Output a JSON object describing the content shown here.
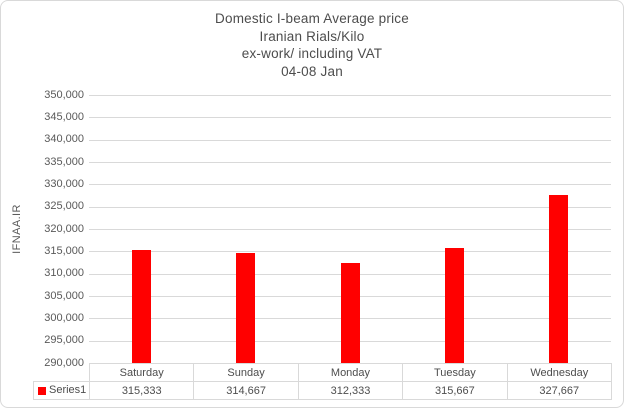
{
  "title": {
    "lines": [
      "Domestic I-beam Average price",
      "Iranian Rials/Kilo",
      "ex-work/ including VAT",
      "04-08 Jan"
    ]
  },
  "legend": {
    "label": "Series1",
    "swatch_color": "#ff0000"
  },
  "chart_data": {
    "type": "bar",
    "title": "Domestic I-beam Average price Iranian Rials/Kilo ex-work/ including VAT 04-08 Jan",
    "categories": [
      "Saturday",
      "Sunday",
      "Monday",
      "Tuesday",
      "Wednesday"
    ],
    "series": [
      {
        "name": "Series1",
        "values": [
          315333,
          314667,
          312333,
          315667,
          327667
        ]
      }
    ],
    "value_labels": [
      "315,333",
      "314,667",
      "312,333",
      "315,667",
      "327,667"
    ],
    "xlabel": "",
    "ylabel": "IFNAA.IR",
    "ylim": [
      290000,
      350000
    ],
    "ytick_step": 5000,
    "ytick_labels": [
      "350,000",
      "345,000",
      "340,000",
      "335,000",
      "330,000",
      "325,000",
      "320,000",
      "315,000",
      "310,000",
      "305,000",
      "300,000",
      "295,000",
      "290,000"
    ],
    "grid": true,
    "legend_position": "bottom-table",
    "bar_color": "#ff0000",
    "gridline_color": "#d9d9d9",
    "data_table_shown": true
  }
}
